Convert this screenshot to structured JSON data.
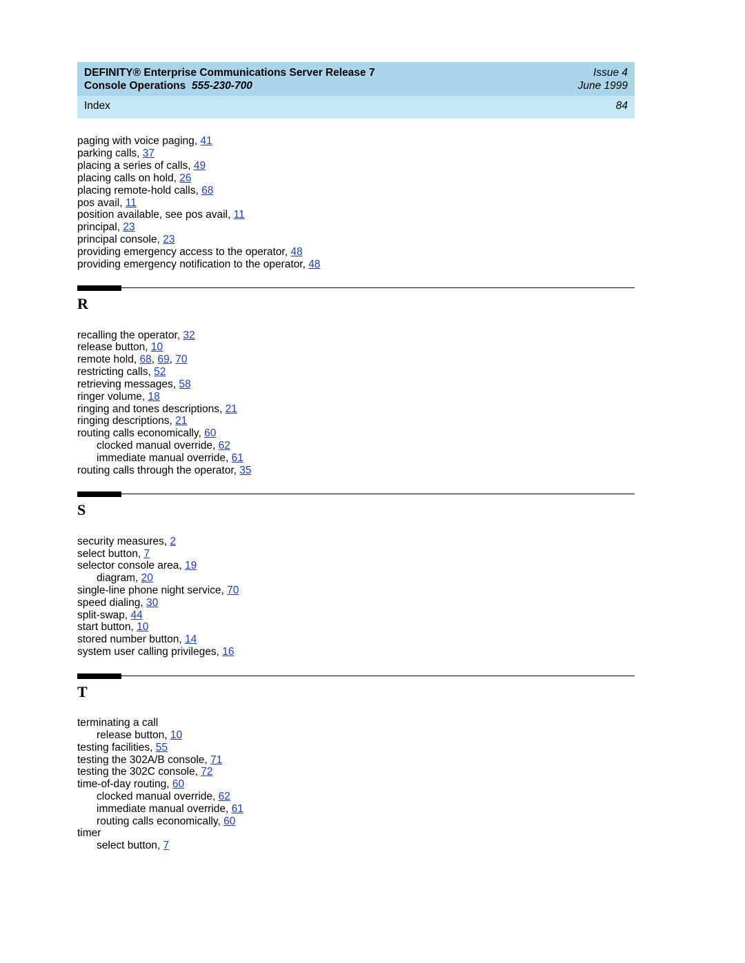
{
  "header": {
    "title_line1": "DEFINITY® Enterprise Communications Server Release 7",
    "title_line2_a": "Console Operations",
    "title_line2_b": "555-230-700",
    "issue": "Issue 4",
    "date": "June 1999"
  },
  "subheader": {
    "label": "Index",
    "page": "84"
  },
  "styles": {
    "header_bg": "#aad5ea",
    "subheader_bg": "#c7e6f6",
    "link_color": "#1a3fbf",
    "body_fontsize": 15.5
  },
  "sections": [
    {
      "letter": null,
      "entries": [
        {
          "text": "paging with voice paging",
          "pages": [
            "41"
          ],
          "indent": 0
        },
        {
          "text": "parking calls",
          "pages": [
            "37"
          ],
          "indent": 0
        },
        {
          "text": "placing a series of calls",
          "pages": [
            "49"
          ],
          "indent": 0
        },
        {
          "text": "placing calls on hold",
          "pages": [
            "26"
          ],
          "indent": 0
        },
        {
          "text": "placing remote-hold calls",
          "pages": [
            "68"
          ],
          "indent": 0
        },
        {
          "text": "pos avail",
          "pages": [
            "11"
          ],
          "indent": 0
        },
        {
          "text": "position available, see pos avail",
          "pages": [
            "11"
          ],
          "indent": 0
        },
        {
          "text": "principal",
          "pages": [
            "23"
          ],
          "indent": 0
        },
        {
          "text": "principal console",
          "pages": [
            "23"
          ],
          "indent": 0
        },
        {
          "text": "providing emergency access to the operator",
          "pages": [
            "48"
          ],
          "indent": 0
        },
        {
          "text": "providing emergency notification to the operator",
          "pages": [
            "48"
          ],
          "indent": 0
        }
      ]
    },
    {
      "letter": "R",
      "entries": [
        {
          "text": "recalling the operator",
          "pages": [
            "32"
          ],
          "indent": 0
        },
        {
          "text": "release button",
          "pages": [
            "10"
          ],
          "indent": 0
        },
        {
          "text": "remote hold",
          "pages": [
            "68",
            "69",
            "70"
          ],
          "indent": 0
        },
        {
          "text": "restricting calls",
          "pages": [
            "52"
          ],
          "indent": 0
        },
        {
          "text": "retrieving messages",
          "pages": [
            "58"
          ],
          "indent": 0
        },
        {
          "text": "ringer volume",
          "pages": [
            "18"
          ],
          "indent": 0
        },
        {
          "text": "ringing and tones descriptions",
          "pages": [
            "21"
          ],
          "indent": 0
        },
        {
          "text": "ringing descriptions",
          "pages": [
            "21"
          ],
          "indent": 0
        },
        {
          "text": "routing calls economically",
          "pages": [
            "60"
          ],
          "indent": 0
        },
        {
          "text": "clocked manual override",
          "pages": [
            "62"
          ],
          "indent": 1
        },
        {
          "text": "immediate manual override",
          "pages": [
            "61"
          ],
          "indent": 1
        },
        {
          "text": "routing calls through the operator",
          "pages": [
            "35"
          ],
          "indent": 0
        }
      ]
    },
    {
      "letter": "S",
      "entries": [
        {
          "text": "security measures",
          "pages": [
            "2"
          ],
          "indent": 0
        },
        {
          "text": "select button",
          "pages": [
            "7"
          ],
          "indent": 0
        },
        {
          "text": "selector console area",
          "pages": [
            "19"
          ],
          "indent": 0
        },
        {
          "text": "diagram",
          "pages": [
            "20"
          ],
          "indent": 1
        },
        {
          "text": "single-line phone night service",
          "pages": [
            "70"
          ],
          "indent": 0
        },
        {
          "text": "speed dialing",
          "pages": [
            "30"
          ],
          "indent": 0
        },
        {
          "text": "split-swap",
          "pages": [
            "44"
          ],
          "indent": 0
        },
        {
          "text": "start button",
          "pages": [
            "10"
          ],
          "indent": 0
        },
        {
          "text": "stored number button",
          "pages": [
            "14"
          ],
          "indent": 0
        },
        {
          "text": "system user calling privileges",
          "pages": [
            "16"
          ],
          "indent": 0
        }
      ]
    },
    {
      "letter": "T",
      "entries": [
        {
          "text": "terminating a call",
          "pages": [],
          "indent": 0
        },
        {
          "text": "release button",
          "pages": [
            "10"
          ],
          "indent": 1
        },
        {
          "text": "testing facilities",
          "pages": [
            "55"
          ],
          "indent": 0
        },
        {
          "text": "testing the 302A/B console",
          "pages": [
            "71"
          ],
          "indent": 0
        },
        {
          "text": "testing the 302C console",
          "pages": [
            "72"
          ],
          "indent": 0
        },
        {
          "text": "time-of-day routing",
          "pages": [
            "60"
          ],
          "indent": 0
        },
        {
          "text": "clocked manual override",
          "pages": [
            "62"
          ],
          "indent": 1
        },
        {
          "text": "immediate manual override",
          "pages": [
            "61"
          ],
          "indent": 1
        },
        {
          "text": "routing calls economically",
          "pages": [
            "60"
          ],
          "indent": 1
        },
        {
          "text": "timer",
          "pages": [],
          "indent": 0
        },
        {
          "text": "select button",
          "pages": [
            "7"
          ],
          "indent": 1
        }
      ]
    }
  ]
}
